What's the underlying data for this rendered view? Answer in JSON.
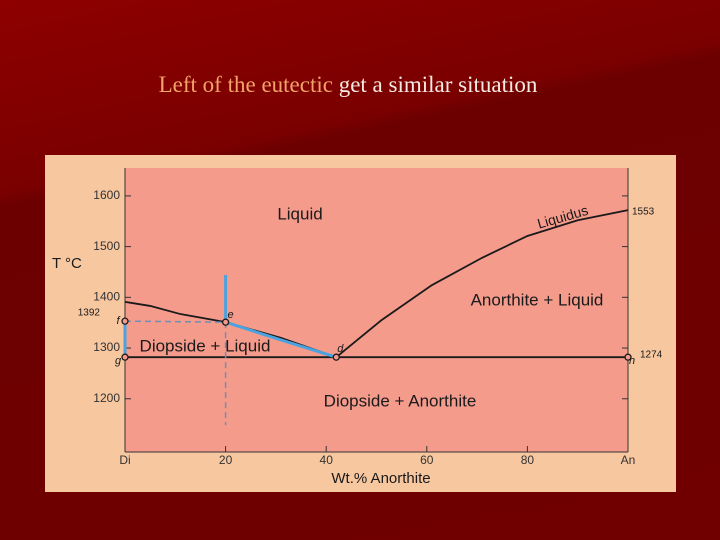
{
  "slide_title": [
    "Left of the eutectic",
    "get a similar situation"
  ],
  "chart_data": {
    "type": "phase",
    "xlabel": "Wt.% Anorthite",
    "ylabel": "T °C",
    "xlim": [
      0,
      100
    ],
    "ylim": [
      1095,
      1655
    ],
    "xticks": [
      {
        "value": 0,
        "label": "Di"
      },
      20,
      40,
      60,
      80,
      {
        "value": 100,
        "label": "An"
      }
    ],
    "yticks": [
      1200,
      1300,
      1400,
      1500,
      1600
    ],
    "lines": [
      {
        "color": "#1a1a1a",
        "style": "solid",
        "x": [
          0,
          5,
          11,
          20,
          31,
          42
        ],
        "values": [
          1391,
          1383,
          1367,
          1351,
          1320,
          1282
        ]
      },
      {
        "color": "#1a1a1a",
        "style": "solid",
        "x": [
          42,
          51,
          61,
          71,
          80,
          90,
          100
        ],
        "values": [
          1282,
          1355,
          1424,
          1478,
          1521,
          1552,
          1572
        ]
      },
      {
        "color": "#1a1a1a",
        "style": "solid",
        "x": [
          0,
          100
        ],
        "values": [
          1282,
          1282
        ]
      },
      {
        "color": "#4aa3df",
        "style": "solid",
        "x": [
          20,
          20,
          31,
          42
        ],
        "values": [
          1444,
          1351,
          1316,
          1282
        ]
      },
      {
        "color": "#4aa3df",
        "style": "solid",
        "x": [
          0,
          0
        ],
        "values": [
          1353,
          1282
        ]
      },
      {
        "color": "#6f90b5",
        "style": "dashed",
        "x": [
          0,
          20
        ],
        "values": [
          1353,
          1351
        ]
      },
      {
        "color": "#6f90b5",
        "style": "dashed",
        "x": [
          20,
          20
        ],
        "values": [
          1351,
          1148
        ]
      }
    ],
    "points": [
      {
        "label": "f",
        "x": 0,
        "y": 1353
      },
      {
        "label": "g",
        "x": 0,
        "y": 1282
      },
      {
        "label": "e",
        "x": 20,
        "y": 1351
      },
      {
        "label": "d",
        "x": 42,
        "y": 1282
      },
      {
        "label": "h",
        "x": 100,
        "y": 1282
      }
    ],
    "annotations": [
      "1392",
      "1274",
      "1553",
      "Liquidus"
    ],
    "regions": [
      "Liquid",
      "Anorthite + Liquid",
      "Diopside + Liquid",
      "Diopside + Anorthite"
    ]
  }
}
